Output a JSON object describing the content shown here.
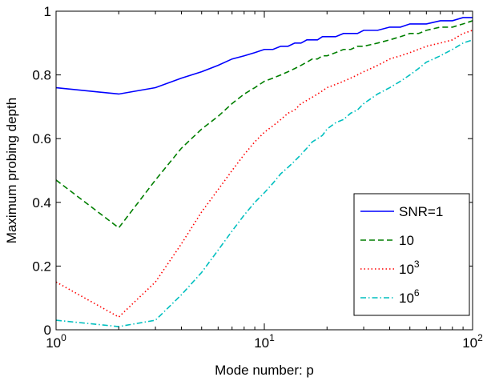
{
  "chart_data": {
    "type": "line",
    "xscale": "log",
    "xlim": [
      1,
      100
    ],
    "ylim": [
      0,
      1
    ],
    "xlabel": "Mode number: p",
    "ylabel": "Maximum probing depth",
    "x_ticks": [
      {
        "value": 1,
        "base": "10",
        "exp": "0"
      },
      {
        "value": 10,
        "base": "10",
        "exp": "1"
      },
      {
        "value": 100,
        "base": "10",
        "exp": "2"
      }
    ],
    "y_ticks": [
      {
        "value": 0,
        "label": "0"
      },
      {
        "value": 0.2,
        "label": "0.2"
      },
      {
        "value": 0.4,
        "label": "0.4"
      },
      {
        "value": 0.6,
        "label": "0.6"
      },
      {
        "value": 0.8,
        "label": "0.8"
      },
      {
        "value": 1,
        "label": "1"
      }
    ],
    "grid": false,
    "legend_position": "right",
    "series": [
      {
        "name": "SNR=1",
        "legend_base": "SNR=1",
        "legend_exp": "",
        "color": "#0000ff",
        "dash": "solid",
        "x": [
          1,
          2,
          3,
          4,
          5,
          6,
          7,
          8,
          9,
          10,
          11,
          12,
          13,
          14,
          15,
          16,
          17,
          18,
          19,
          20,
          22,
          24,
          26,
          28,
          30,
          35,
          40,
          45,
          50,
          55,
          60,
          70,
          80,
          90,
          100
        ],
        "y": [
          0.76,
          0.74,
          0.76,
          0.79,
          0.81,
          0.83,
          0.85,
          0.86,
          0.87,
          0.88,
          0.88,
          0.89,
          0.89,
          0.9,
          0.9,
          0.91,
          0.91,
          0.91,
          0.92,
          0.92,
          0.92,
          0.93,
          0.93,
          0.93,
          0.94,
          0.94,
          0.95,
          0.95,
          0.96,
          0.96,
          0.96,
          0.97,
          0.97,
          0.98,
          0.98
        ]
      },
      {
        "name": "10",
        "legend_base": "10",
        "legend_exp": "",
        "color": "#007f00",
        "dash": "dashed",
        "x": [
          1,
          2,
          3,
          4,
          5,
          6,
          7,
          8,
          9,
          10,
          11,
          12,
          13,
          14,
          15,
          16,
          17,
          18,
          19,
          20,
          22,
          24,
          26,
          28,
          30,
          35,
          40,
          45,
          50,
          55,
          60,
          70,
          80,
          90,
          100
        ],
        "y": [
          0.47,
          0.32,
          0.47,
          0.57,
          0.63,
          0.67,
          0.71,
          0.74,
          0.76,
          0.78,
          0.79,
          0.8,
          0.81,
          0.82,
          0.83,
          0.84,
          0.85,
          0.85,
          0.86,
          0.86,
          0.87,
          0.88,
          0.88,
          0.89,
          0.89,
          0.9,
          0.91,
          0.92,
          0.93,
          0.93,
          0.94,
          0.95,
          0.95,
          0.96,
          0.97
        ]
      },
      {
        "name": "10^3",
        "legend_base": "10",
        "legend_exp": "3",
        "color": "#ff0000",
        "dash": "dotted",
        "x": [
          1,
          2,
          3,
          4,
          5,
          6,
          7,
          8,
          9,
          10,
          11,
          12,
          13,
          14,
          15,
          16,
          17,
          18,
          19,
          20,
          22,
          24,
          26,
          28,
          30,
          35,
          40,
          45,
          50,
          55,
          60,
          70,
          80,
          90,
          100
        ],
        "y": [
          0.15,
          0.04,
          0.15,
          0.27,
          0.37,
          0.44,
          0.5,
          0.55,
          0.59,
          0.62,
          0.64,
          0.66,
          0.68,
          0.69,
          0.71,
          0.72,
          0.73,
          0.74,
          0.75,
          0.76,
          0.77,
          0.78,
          0.79,
          0.8,
          0.81,
          0.83,
          0.85,
          0.86,
          0.87,
          0.88,
          0.89,
          0.9,
          0.91,
          0.93,
          0.94
        ]
      },
      {
        "name": "10^6",
        "legend_base": "10",
        "legend_exp": "6",
        "color": "#00bfbf",
        "dash": "dashdot",
        "x": [
          1,
          2,
          3,
          4,
          5,
          6,
          7,
          8,
          9,
          10,
          11,
          12,
          13,
          14,
          15,
          16,
          17,
          18,
          19,
          20,
          22,
          24,
          26,
          28,
          30,
          35,
          40,
          45,
          50,
          55,
          60,
          70,
          80,
          90,
          100
        ],
        "y": [
          0.03,
          0.01,
          0.03,
          0.11,
          0.18,
          0.25,
          0.31,
          0.36,
          0.4,
          0.43,
          0.46,
          0.49,
          0.51,
          0.53,
          0.55,
          0.57,
          0.59,
          0.6,
          0.61,
          0.63,
          0.65,
          0.66,
          0.68,
          0.69,
          0.71,
          0.74,
          0.76,
          0.78,
          0.8,
          0.82,
          0.84,
          0.86,
          0.88,
          0.9,
          0.91
        ]
      }
    ]
  }
}
